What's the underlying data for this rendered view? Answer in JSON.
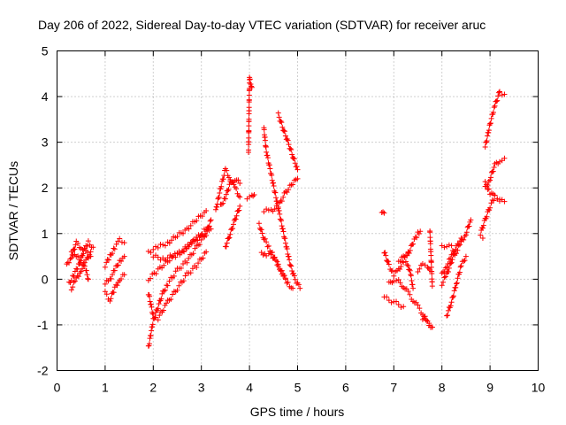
{
  "chart_data": {
    "type": "scatter",
    "title": "Day 206 of 2022, Sidereal Day-to-day VTEC variation (SDTVAR) for receiver aruc",
    "xlabel": "GPS time / hours",
    "ylabel": "SDTVAR / TECUs",
    "xlim": [
      0,
      10
    ],
    "ylim": [
      -2,
      5
    ],
    "grid": true,
    "marker": "+",
    "color": "#ff0000",
    "x_ticks": [
      "0",
      "1",
      "2",
      "3",
      "4",
      "5",
      "6",
      "7",
      "8",
      "9",
      "10"
    ],
    "y_ticks": [
      "-2",
      "-1",
      "0",
      "1",
      "2",
      "3",
      "4",
      "5"
    ],
    "traces": [
      {
        "points": [
          [
            0.2,
            0.3
          ],
          [
            0.3,
            0.5
          ],
          [
            0.4,
            0.8
          ],
          [
            0.5,
            0.7
          ],
          [
            0.6,
            0.6
          ],
          [
            0.7,
            0.5
          ]
        ]
      },
      {
        "points": [
          [
            0.25,
            -0.1
          ],
          [
            0.35,
            0.1
          ],
          [
            0.45,
            0.3
          ],
          [
            0.55,
            0.6
          ],
          [
            0.65,
            0.8
          ],
          [
            0.75,
            0.7
          ]
        ]
      },
      {
        "points": [
          [
            0.3,
            0.6
          ],
          [
            0.4,
            0.5
          ],
          [
            0.5,
            0.4
          ],
          [
            0.6,
            0.2
          ],
          [
            0.65,
            0.0
          ]
        ]
      },
      {
        "points": [
          [
            0.3,
            -0.2
          ],
          [
            0.4,
            0.0
          ],
          [
            0.5,
            0.2
          ],
          [
            0.6,
            0.4
          ],
          [
            0.7,
            0.6
          ]
        ]
      },
      {
        "points": [
          [
            1.0,
            0.3
          ],
          [
            1.1,
            0.5
          ],
          [
            1.2,
            0.7
          ],
          [
            1.3,
            0.85
          ],
          [
            1.4,
            0.8
          ]
        ]
      },
      {
        "points": [
          [
            1.0,
            -0.1
          ],
          [
            1.1,
            0.0
          ],
          [
            1.2,
            0.2
          ],
          [
            1.3,
            0.4
          ],
          [
            1.4,
            0.5
          ]
        ]
      },
      {
        "points": [
          [
            1.0,
            -0.3
          ],
          [
            1.1,
            -0.45
          ],
          [
            1.2,
            -0.2
          ],
          [
            1.3,
            0.0
          ],
          [
            1.4,
            0.1
          ]
        ]
      },
      {
        "points": [
          [
            1.9,
            -1.5
          ],
          [
            1.95,
            -1.2
          ],
          [
            2.0,
            -0.9
          ],
          [
            2.1,
            -0.6
          ],
          [
            2.2,
            -0.3
          ],
          [
            2.3,
            -0.1
          ],
          [
            2.5,
            0.2
          ],
          [
            2.7,
            0.4
          ],
          [
            2.9,
            0.7
          ],
          [
            3.1,
            1.0
          ],
          [
            3.2,
            1.3
          ]
        ]
      },
      {
        "points": [
          [
            1.9,
            0.6
          ],
          [
            2.1,
            0.7
          ],
          [
            2.3,
            0.8
          ],
          [
            2.5,
            0.95
          ],
          [
            2.7,
            1.1
          ],
          [
            2.9,
            1.3
          ],
          [
            3.1,
            1.5
          ]
        ]
      },
      {
        "points": [
          [
            1.9,
            0.0
          ],
          [
            2.1,
            0.2
          ],
          [
            2.3,
            0.4
          ],
          [
            2.5,
            0.55
          ],
          [
            2.7,
            0.7
          ],
          [
            2.9,
            0.9
          ],
          [
            3.1,
            1.1
          ]
        ]
      },
      {
        "points": [
          [
            1.9,
            -0.3
          ],
          [
            2.0,
            -0.8
          ],
          [
            2.1,
            -0.85
          ],
          [
            2.3,
            -0.5
          ],
          [
            2.5,
            -0.2
          ],
          [
            2.7,
            0.1
          ],
          [
            2.9,
            0.3
          ],
          [
            3.1,
            0.6
          ]
        ]
      },
      {
        "points": [
          [
            2.0,
            0.5
          ],
          [
            2.2,
            0.45
          ],
          [
            2.4,
            0.5
          ],
          [
            2.6,
            0.6
          ],
          [
            2.8,
            0.8
          ],
          [
            3.0,
            0.95
          ],
          [
            3.2,
            1.1
          ]
        ]
      },
      {
        "points": [
          [
            3.3,
            1.5
          ],
          [
            3.4,
            2.0
          ],
          [
            3.5,
            2.4
          ],
          [
            3.6,
            2.2
          ],
          [
            3.7,
            2.0
          ],
          [
            3.8,
            1.8
          ]
        ]
      },
      {
        "points": [
          [
            3.4,
            1.6
          ],
          [
            3.5,
            1.8
          ],
          [
            3.6,
            2.1
          ],
          [
            3.7,
            2.2
          ],
          [
            3.8,
            2.1
          ]
        ]
      },
      {
        "points": [
          [
            3.5,
            0.7
          ],
          [
            3.6,
            1.0
          ],
          [
            3.7,
            1.3
          ],
          [
            3.8,
            1.6
          ]
        ]
      },
      {
        "points": [
          [
            3.98,
            2.8
          ],
          [
            4.0,
            4.4
          ],
          [
            4.05,
            4.2
          ]
        ]
      },
      {
        "points": [
          [
            3.95,
            1.8
          ],
          [
            4.05,
            1.8
          ],
          [
            4.1,
            1.85
          ]
        ]
      },
      {
        "points": [
          [
            4.3,
            1.5
          ],
          [
            4.45,
            1.5
          ],
          [
            4.6,
            1.6
          ],
          [
            4.75,
            1.9
          ],
          [
            4.9,
            2.1
          ],
          [
            5.0,
            2.2
          ]
        ]
      },
      {
        "points": [
          [
            4.3,
            3.3
          ],
          [
            4.35,
            2.8
          ],
          [
            4.45,
            2.3
          ],
          [
            4.55,
            1.8
          ],
          [
            4.65,
            1.3
          ],
          [
            4.75,
            0.8
          ],
          [
            4.85,
            0.3
          ],
          [
            4.95,
            0.0
          ],
          [
            5.05,
            -0.2
          ]
        ]
      },
      {
        "points": [
          [
            4.6,
            3.6
          ],
          [
            4.7,
            3.3
          ],
          [
            4.8,
            3.0
          ],
          [
            4.9,
            2.7
          ],
          [
            5.0,
            2.4
          ]
        ]
      },
      {
        "points": [
          [
            4.2,
            1.2
          ],
          [
            4.3,
            0.9
          ],
          [
            4.4,
            0.7
          ],
          [
            4.5,
            0.5
          ],
          [
            4.6,
            0.3
          ],
          [
            4.7,
            0.1
          ],
          [
            4.8,
            -0.1
          ],
          [
            4.9,
            -0.2
          ]
        ]
      },
      {
        "points": [
          [
            4.25,
            0.6
          ],
          [
            4.35,
            0.5
          ],
          [
            4.45,
            0.55
          ],
          [
            4.55,
            0.4
          ],
          [
            4.65,
            0.2
          ],
          [
            4.75,
            0.0
          ]
        ]
      },
      {
        "points": [
          [
            6.75,
            1.5
          ],
          [
            6.8,
            1.45
          ]
        ]
      },
      {
        "points": [
          [
            6.8,
            0.6
          ],
          [
            6.9,
            0.3
          ],
          [
            7.0,
            0.1
          ],
          [
            7.1,
            0.2
          ],
          [
            7.2,
            0.4
          ],
          [
            7.3,
            0.6
          ]
        ]
      },
      {
        "points": [
          [
            6.8,
            -0.4
          ],
          [
            6.9,
            -0.45
          ],
          [
            7.0,
            -0.5
          ],
          [
            7.1,
            -0.55
          ],
          [
            7.2,
            -0.6
          ]
        ]
      },
      {
        "points": [
          [
            6.9,
            -0.1
          ],
          [
            7.0,
            0.0
          ],
          [
            7.1,
            -0.05
          ],
          [
            7.2,
            -0.15
          ],
          [
            7.3,
            -0.3
          ],
          [
            7.4,
            -0.45
          ],
          [
            7.5,
            -0.6
          ],
          [
            7.6,
            -0.75
          ],
          [
            7.7,
            -0.95
          ],
          [
            7.8,
            -1.05
          ]
        ]
      },
      {
        "points": [
          [
            7.3,
            0.55
          ],
          [
            7.4,
            0.8
          ],
          [
            7.5,
            1.0
          ],
          [
            7.55,
            1.05
          ]
        ]
      },
      {
        "points": [
          [
            7.1,
            0.4
          ],
          [
            7.2,
            0.5
          ],
          [
            7.3,
            0.3
          ],
          [
            7.35,
            0.1
          ],
          [
            7.4,
            -0.2
          ]
        ]
      },
      {
        "points": [
          [
            7.5,
            0.2
          ],
          [
            7.6,
            0.3
          ],
          [
            7.7,
            0.3
          ],
          [
            7.75,
            0.2
          ]
        ]
      },
      {
        "points": [
          [
            7.6,
            -0.85
          ],
          [
            7.7,
            -0.95
          ],
          [
            7.8,
            -1.05
          ]
        ]
      },
      {
        "points": [
          [
            7.75,
            1.05
          ],
          [
            7.8,
            -0.15
          ]
        ]
      },
      {
        "points": [
          [
            8.0,
            0.1
          ],
          [
            8.1,
            0.3
          ],
          [
            8.2,
            0.5
          ],
          [
            8.3,
            0.6
          ],
          [
            8.4,
            0.8
          ],
          [
            8.5,
            1.0
          ],
          [
            8.6,
            1.3
          ]
        ]
      },
      {
        "points": [
          [
            8.0,
            0.7
          ],
          [
            8.1,
            0.75
          ],
          [
            8.2,
            0.7
          ],
          [
            8.25,
            0.6
          ]
        ]
      },
      {
        "points": [
          [
            8.1,
            -0.8
          ],
          [
            8.2,
            -0.5
          ],
          [
            8.3,
            -0.1
          ],
          [
            8.4,
            0.3
          ],
          [
            8.5,
            0.5
          ]
        ]
      },
      {
        "points": [
          [
            8.0,
            -0.1
          ],
          [
            8.1,
            0.1
          ],
          [
            8.2,
            0.4
          ],
          [
            8.3,
            0.7
          ],
          [
            8.4,
            0.9
          ]
        ]
      },
      {
        "points": [
          [
            8.8,
            1.0
          ],
          [
            8.9,
            1.3
          ],
          [
            9.0,
            1.6
          ],
          [
            9.1,
            1.8
          ],
          [
            9.2,
            1.75
          ],
          [
            9.3,
            1.7
          ]
        ]
      },
      {
        "points": [
          [
            8.9,
            2.9
          ],
          [
            9.0,
            3.4
          ],
          [
            9.1,
            3.8
          ],
          [
            9.2,
            4.1
          ],
          [
            9.3,
            4.05
          ]
        ]
      },
      {
        "points": [
          [
            8.9,
            2.0
          ],
          [
            9.0,
            2.2
          ],
          [
            9.1,
            2.5
          ],
          [
            9.2,
            2.6
          ],
          [
            9.3,
            2.65
          ]
        ]
      },
      {
        "points": [
          [
            8.9,
            2.1
          ],
          [
            9.0,
            1.9
          ],
          [
            9.1,
            1.8
          ],
          [
            9.2,
            1.75
          ]
        ]
      },
      {
        "points": [
          [
            8.85,
            0.9
          ]
        ]
      }
    ]
  }
}
